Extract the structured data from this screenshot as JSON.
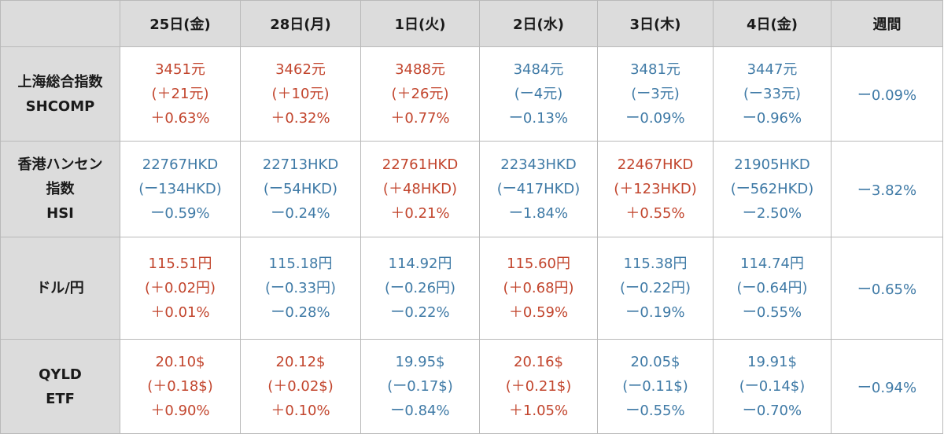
{
  "header": {
    "corner": "",
    "days": [
      "25日(金)",
      "28日(月)",
      "1日(火)",
      "2日(水)",
      "3日(木)",
      "4日(金)"
    ],
    "weekly": "週間"
  },
  "colors": {
    "up": "#c2452d",
    "down": "#3f7aa6",
    "header_bg": "#dcdcdc",
    "border": "#b9b9b9"
  },
  "rows": [
    {
      "label_lines": [
        "上海総合指数",
        "SHCOMP"
      ],
      "cells": [
        {
          "dir": "up",
          "lines": [
            "3451元",
            "(＋21元)",
            "＋0.63%"
          ]
        },
        {
          "dir": "up",
          "lines": [
            "3462元",
            "(＋10元)",
            "＋0.32%"
          ]
        },
        {
          "dir": "up",
          "lines": [
            "3488元",
            "(＋26元)",
            "＋0.77%"
          ]
        },
        {
          "dir": "down",
          "lines": [
            "3484元",
            "(ー4元)",
            "ー0.13%"
          ]
        },
        {
          "dir": "down",
          "lines": [
            "3481元",
            "(ー3元)",
            "ー0.09%"
          ]
        },
        {
          "dir": "down",
          "lines": [
            "3447元",
            "(ー33元)",
            "ー0.96%"
          ]
        }
      ],
      "weekly": "ー0.09%"
    },
    {
      "label_lines": [
        "香港ハンセン",
        "指数",
        "HSI"
      ],
      "cells": [
        {
          "dir": "down",
          "lines": [
            "22767HKD",
            "(ー134HKD)",
            "ー0.59%"
          ]
        },
        {
          "dir": "down",
          "lines": [
            "22713HKD",
            "(ー54HKD)",
            "ー0.24%"
          ]
        },
        {
          "dir": "up",
          "lines": [
            "22761HKD",
            "(＋48HKD)",
            "＋0.21%"
          ]
        },
        {
          "dir": "down",
          "lines": [
            "22343HKD",
            "(ー417HKD)",
            "ー1.84%"
          ]
        },
        {
          "dir": "up",
          "lines": [
            "22467HKD",
            "(＋123HKD)",
            "＋0.55%"
          ]
        },
        {
          "dir": "down",
          "lines": [
            "21905HKD",
            "(ー562HKD)",
            "ー2.50%"
          ]
        }
      ],
      "weekly": "ー3.82%"
    },
    {
      "label_lines": [
        "ドル/円"
      ],
      "cells": [
        {
          "dir": "up",
          "lines": [
            "115.51円",
            "(＋0.02円)",
            "＋0.01%"
          ]
        },
        {
          "dir": "down",
          "lines": [
            "115.18円",
            "(ー0.33円)",
            "ー0.28%"
          ]
        },
        {
          "dir": "down",
          "lines": [
            "114.92円",
            "(ー0.26円)",
            "ー0.22%"
          ]
        },
        {
          "dir": "up",
          "lines": [
            "115.60円",
            "(＋0.68円)",
            "＋0.59%"
          ]
        },
        {
          "dir": "down",
          "lines": [
            "115.38円",
            "(ー0.22円)",
            "ー0.19%"
          ]
        },
        {
          "dir": "down",
          "lines": [
            "114.74円",
            "(ー0.64円)",
            "ー0.55%"
          ]
        }
      ],
      "weekly": "ー0.65%"
    },
    {
      "label_lines": [
        "QYLD",
        "ETF"
      ],
      "cells": [
        {
          "dir": "up",
          "lines": [
            "20.10$",
            "(＋0.18$)",
            "＋0.90%"
          ]
        },
        {
          "dir": "up",
          "lines": [
            "20.12$",
            "(＋0.02$)",
            "＋0.10%"
          ]
        },
        {
          "dir": "down",
          "lines": [
            "19.95$",
            "(ー0.17$)",
            "ー0.84%"
          ]
        },
        {
          "dir": "up",
          "lines": [
            "20.16$",
            "(＋0.21$)",
            "＋1.05%"
          ]
        },
        {
          "dir": "down",
          "lines": [
            "20.05$",
            "(ー0.11$)",
            "ー0.55%"
          ]
        },
        {
          "dir": "down",
          "lines": [
            "19.91$",
            "(ー0.14$)",
            "ー0.70%"
          ]
        }
      ],
      "weekly": "ー0.94%"
    }
  ]
}
